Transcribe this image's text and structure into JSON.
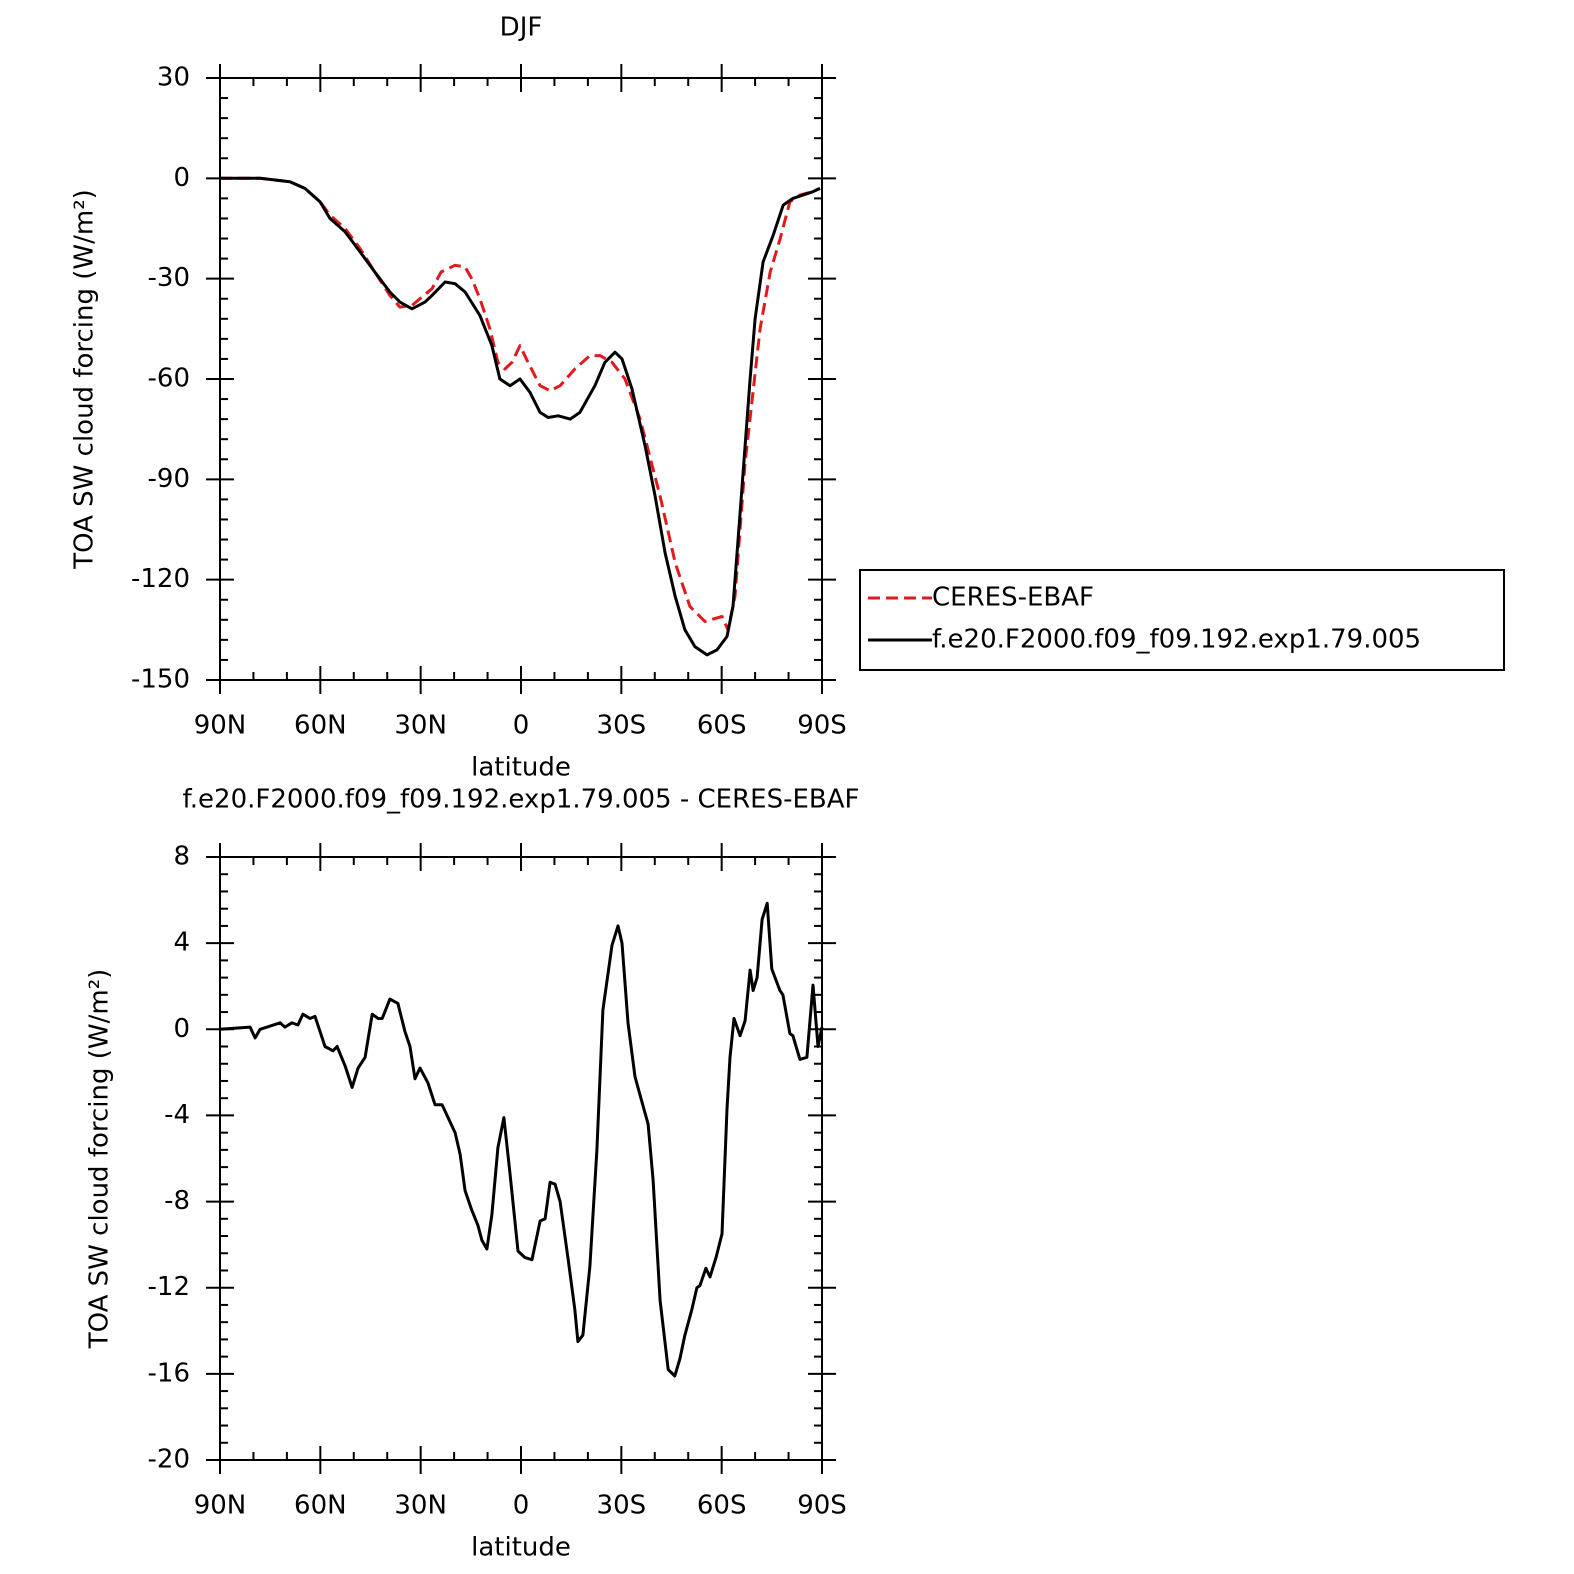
{
  "chart_data": [
    {
      "type": "line",
      "title": "DJF",
      "xlabel": "latitude",
      "ylabel": "TOA SW cloud forcing (W/m²)",
      "xlim": [
        90,
        -90
      ],
      "xticks": [
        {
          "value": 90,
          "label": "90N"
        },
        {
          "value": 60,
          "label": "60N"
        },
        {
          "value": 30,
          "label": "30N"
        },
        0,
        {
          "value": -30,
          "label": "30S"
        },
        {
          "value": -60,
          "label": "60S"
        },
        {
          "value": -90,
          "label": "90S"
        }
      ],
      "ylim": [
        -150,
        30
      ],
      "yticks": [
        -150,
        -120,
        -90,
        -60,
        -30,
        0,
        30
      ],
      "legend": "right",
      "series": [
        {
          "name": "CERES-EBAF",
          "color": "#e31a1c",
          "linestyle": "dashed",
          "x": [
            90,
            78,
            69.1,
            64.6,
            60.1,
            57.1,
            52.6,
            48.1,
            43.7,
            39.2,
            36.2,
            32.6,
            30.2,
            26.6,
            23.9,
            19.7,
            16.7,
            14.7,
            12.3,
            9.3,
            6.9,
            4.8,
            2.7,
            0.3,
            -2.1,
            -5.7,
            -8.7,
            -11.7,
            -16.1,
            -20.6,
            -23.6,
            -27.2,
            -31.1,
            -35.6,
            -41.6,
            -46.1,
            -50.5,
            -55,
            -60.1,
            -61.9,
            -64,
            -67,
            -71.5,
            -74.5,
            -77.5,
            -80.4,
            -83.4,
            -87,
            -89.4
          ],
          "values": [
            0,
            0,
            -1,
            -3,
            -7,
            -11,
            -15,
            -21,
            -28,
            -35,
            -38.5,
            -38,
            -36,
            -33,
            -28,
            -26,
            -26.5,
            -30,
            -36,
            -45,
            -55,
            -57,
            -55,
            -50,
            -55,
            -62,
            -63.5,
            -62,
            -57,
            -53,
            -53,
            -55,
            -60,
            -72,
            -95,
            -115,
            -128,
            -132.5,
            -131,
            -135,
            -125,
            -85,
            -45,
            -28,
            -18,
            -7,
            -5,
            -4,
            -3
          ]
        },
        {
          "name": "f.e20.F2000.f09_f09.192.exp1.79.005",
          "color": "#000000",
          "linestyle": "solid",
          "x": [
            90,
            78,
            69.1,
            64.6,
            60.1,
            57.1,
            52.6,
            48.1,
            43.7,
            39.2,
            36.2,
            32.6,
            28.7,
            26.6,
            22.7,
            19.7,
            16.7,
            12.3,
            8.7,
            6.3,
            3.3,
            0.3,
            -2.7,
            -5.7,
            -8.1,
            -11.1,
            -14.7,
            -17.6,
            -22.1,
            -25.1,
            -28.1,
            -30.2,
            -33.2,
            -37.1,
            -40.1,
            -43.1,
            -46.1,
            -49,
            -52,
            -55.6,
            -58.6,
            -61.6,
            -63.4,
            -65.5,
            -67,
            -68.5,
            -70,
            -72.4,
            -75.4,
            -78.4,
            -81.3,
            -84.3,
            -87.3,
            -89.4
          ],
          "values": [
            0,
            0,
            -1,
            -3,
            -7,
            -12,
            -16,
            -22,
            -28,
            -34,
            -37,
            -39,
            -37,
            -35,
            -31,
            -31.5,
            -34,
            -41,
            -50,
            -60,
            -62,
            -60,
            -64,
            -70,
            -71.5,
            -71,
            -72,
            -70,
            -62,
            -55,
            -52,
            -54,
            -63,
            -80,
            -95,
            -112,
            -125,
            -135,
            -140,
            -142.5,
            -141,
            -137,
            -128,
            -100,
            -80,
            -60,
            -42,
            -25,
            -17,
            -8,
            -6,
            -5,
            -4,
            -3
          ]
        }
      ]
    },
    {
      "type": "line",
      "title": "f.e20.F2000.f09_f09.192.exp1.79.005 - CERES-EBAF",
      "xlabel": "latitude",
      "ylabel": "TOA SW cloud forcing (W/m²)",
      "xlim": [
        90,
        -90
      ],
      "xticks": [
        {
          "value": 90,
          "label": "90N"
        },
        {
          "value": 60,
          "label": "60N"
        },
        {
          "value": 30,
          "label": "30N"
        },
        0,
        {
          "value": -30,
          "label": "30S"
        },
        {
          "value": -60,
          "label": "60S"
        },
        {
          "value": -90,
          "label": "90S"
        }
      ],
      "ylim": [
        -20,
        8
      ],
      "yticks": [
        -20,
        -16,
        -12,
        -8,
        -4,
        0,
        4,
        8
      ],
      "color": "#000000",
      "x": [
        90,
        81,
        79.5,
        78,
        72,
        70.6,
        68.5,
        66.7,
        65.2,
        63.1,
        61.6,
        60.1,
        58.6,
        56.2,
        55,
        52.6,
        50.5,
        48.7,
        46.6,
        44.5,
        42.7,
        41.5,
        39.2,
        36.8,
        34.7,
        33.2,
        31.7,
        30.2,
        27.8,
        25.7,
        23.6,
        19.7,
        18.2,
        16.7,
        14.7,
        12.9,
        11.7,
        10.2,
        8.7,
        6.9,
        5.1,
        3.3,
        0.9,
        -1.2,
        -3.3,
        -5.7,
        -7.2,
        -8.7,
        -10.2,
        -11.7,
        -14.1,
        -16.1,
        -17,
        -18.5,
        -20.6,
        -22.7,
        -24.5,
        -27.2,
        -29,
        -30.2,
        -32,
        -34.1,
        -36.2,
        -38,
        -39.5,
        -41.6,
        -44,
        -46,
        -47.5,
        -49,
        -51.1,
        -52.6,
        -53.5,
        -55.3,
        -56.5,
        -58.3,
        -60.1,
        -61.6,
        -62.5,
        -63.7,
        -65.5,
        -67,
        -68.5,
        -69.4,
        -70.6,
        -72.1,
        -73.6,
        -75,
        -77.4,
        -78.3,
        -80.4,
        -81.3,
        -83.4,
        -85.5,
        -87.3,
        -88.8,
        -90
      ],
      "values": [
        0,
        0.1,
        -0.4,
        0,
        0.3,
        0.1,
        0.3,
        0.2,
        0.7,
        0.5,
        0.6,
        -0.1,
        -0.8,
        -1,
        -0.8,
        -1.7,
        -2.7,
        -1.8,
        -1.3,
        0.7,
        0.5,
        0.5,
        1.4,
        1.2,
        -0.1,
        -0.8,
        -2.3,
        -1.8,
        -2.5,
        -3.5,
        -3.5,
        -4.8,
        -5.8,
        -7.5,
        -8.4,
        -9.1,
        -9.8,
        -10.2,
        -8.6,
        -5.5,
        -4.1,
        -6.7,
        -10.3,
        -10.6,
        -10.7,
        -8.9,
        -8.8,
        -7.1,
        -7.2,
        -8,
        -10.7,
        -13,
        -14.5,
        -14.2,
        -11,
        -5.6,
        0.9,
        3.9,
        4.8,
        4,
        0.3,
        -2.2,
        -3.4,
        -4.4,
        -7,
        -12.6,
        -15.8,
        -16.1,
        -15.3,
        -14.2,
        -13,
        -12,
        -11.9,
        -11.1,
        -11.5,
        -10.6,
        -9.5,
        -3.7,
        -1.3,
        0.5,
        -0.3,
        0.4,
        2.75,
        1.8,
        2.4,
        5.1,
        5.85,
        2.8,
        1.8,
        1.6,
        -0.2,
        -0.3,
        -1.4,
        -1.3,
        2.05,
        -0.8,
        0.1
      ]
    }
  ]
}
